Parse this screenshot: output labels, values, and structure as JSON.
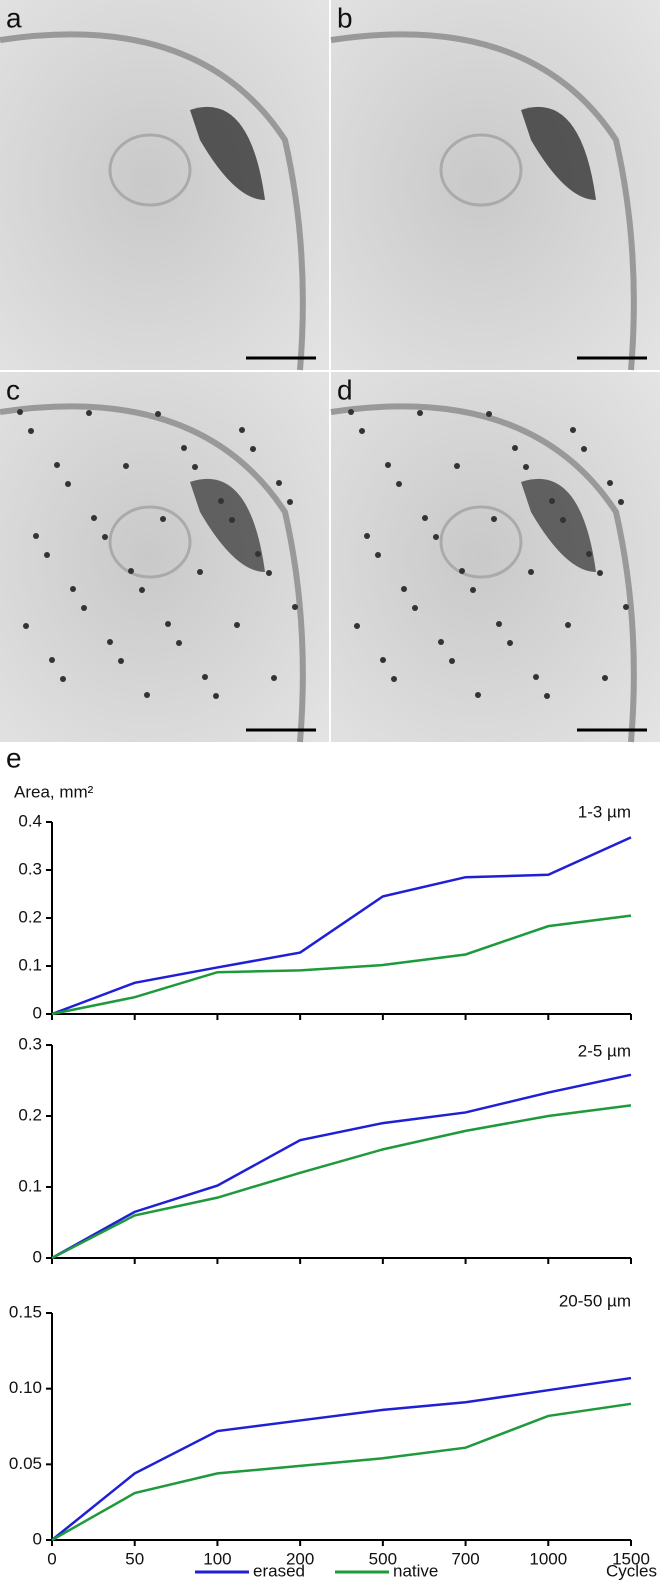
{
  "panels": [
    {
      "label": "a"
    },
    {
      "label": "b"
    },
    {
      "label": "c"
    },
    {
      "label": "d"
    }
  ],
  "figure_label": "e",
  "chart_data": [
    {
      "type": "line",
      "y_label": "Area, mm²",
      "subtitle": "1-3 µm",
      "ylim": [
        0,
        0.4
      ],
      "yticks": [
        0,
        0.1,
        0.2,
        0.3,
        0.4
      ],
      "series": [
        {
          "name": "erased",
          "color": "#1f1fd6",
          "values": [
            0,
            0.065,
            0.097,
            0.128,
            0.245,
            0.285,
            0.29,
            0.368
          ]
        },
        {
          "name": "native",
          "color": "#1e9a3c",
          "values": [
            0,
            0.035,
            0.087,
            0.091,
            0.102,
            0.124,
            0.183,
            0.205
          ]
        }
      ]
    },
    {
      "type": "line",
      "subtitle": "2-5 µm",
      "ylim": [
        0,
        0.3
      ],
      "yticks": [
        0,
        0.1,
        0.2,
        0.3
      ],
      "series": [
        {
          "name": "erased",
          "color": "#1f1fd6",
          "values": [
            0,
            0.065,
            0.102,
            0.166,
            0.19,
            0.205,
            0.233,
            0.258
          ]
        },
        {
          "name": "native",
          "color": "#1e9a3c",
          "values": [
            0,
            0.06,
            0.085,
            0.12,
            0.153,
            0.179,
            0.2,
            0.215
          ]
        }
      ]
    },
    {
      "type": "line",
      "subtitle": "20-50 µm",
      "x_label": "Cycles",
      "categories": [
        "0",
        "50",
        "100",
        "200",
        "500",
        "700",
        "1000",
        "1500"
      ],
      "ylim": [
        0,
        0.15
      ],
      "yticks": [
        0,
        0.05,
        {
          "value": 0.1,
          "label": "0.10"
        },
        0.15
      ],
      "series": [
        {
          "name": "erased",
          "color": "#1f1fd6",
          "values": [
            0,
            0.044,
            0.072,
            0.079,
            0.086,
            0.091,
            0.099,
            0.107
          ]
        },
        {
          "name": "native",
          "color": "#1e9a3c",
          "values": [
            0,
            0.031,
            0.044,
            0.049,
            0.054,
            0.061,
            0.082,
            0.09
          ]
        }
      ]
    }
  ]
}
